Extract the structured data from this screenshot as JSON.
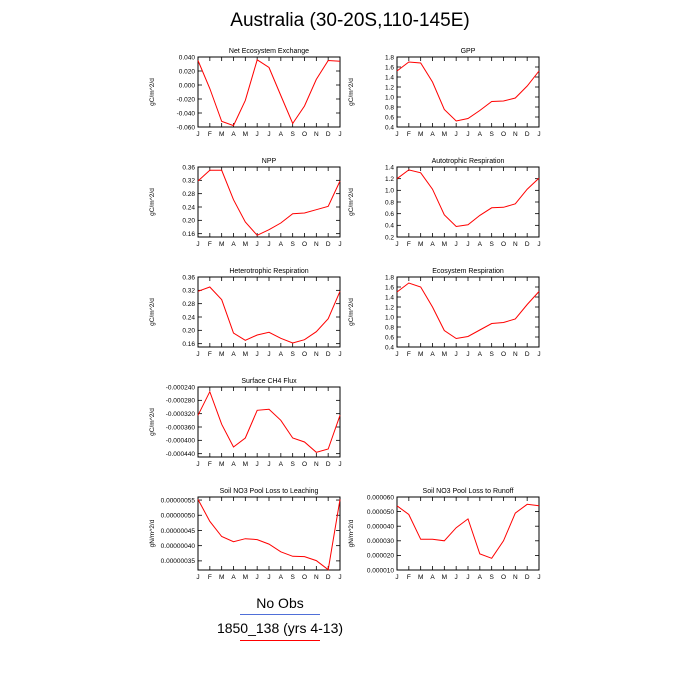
{
  "page_title": "Australia (30-20S,110-145E)",
  "legend": {
    "items": [
      {
        "label": "No Obs",
        "color": "#4f6fd8"
      },
      {
        "label": "1850_138 (yrs 4-13)",
        "color": "#ff0000"
      }
    ]
  },
  "line_color": "#ff0000",
  "months": [
    "J",
    "F",
    "M",
    "A",
    "M",
    "J",
    "J",
    "A",
    "S",
    "O",
    "N",
    "D",
    "J"
  ],
  "chart_data": [
    {
      "type": "line",
      "title": "Net Ecosystem Exchange",
      "ylabel": "gC/m^2/d",
      "ylim": [
        -0.06,
        0.04
      ],
      "yticks": [
        "0.040",
        "0.020",
        "0.000",
        "-0.020",
        "-0.040",
        "-0.060"
      ],
      "values": [
        0.035,
        -0.005,
        -0.052,
        -0.058,
        -0.022,
        0.036,
        0.025,
        -0.015,
        -0.055,
        -0.03,
        0.008,
        0.035,
        0.034
      ]
    },
    {
      "type": "line",
      "title": "GPP",
      "ylabel": "gC/m^2/d",
      "ylim": [
        0.4,
        1.8
      ],
      "yticks": [
        "1.8",
        "1.6",
        "1.4",
        "1.2",
        "1.0",
        "0.8",
        "0.6",
        "0.4"
      ],
      "values": [
        1.52,
        1.7,
        1.68,
        1.3,
        0.75,
        0.52,
        0.57,
        0.73,
        0.91,
        0.92,
        0.98,
        1.22,
        1.52
      ]
    },
    {
      "type": "line",
      "title": "NPP",
      "ylabel": "gC/m^2/d",
      "ylim": [
        0.15,
        0.36
      ],
      "yticks": [
        "0.36",
        "0.32",
        "0.28",
        "0.24",
        "0.20",
        "0.16"
      ],
      "values": [
        0.318,
        0.35,
        0.35,
        0.262,
        0.195,
        0.155,
        0.172,
        0.192,
        0.22,
        0.222,
        0.232,
        0.242,
        0.318
      ]
    },
    {
      "type": "line",
      "title": "Autotrophic Respiration",
      "ylabel": "gC/m^2/d",
      "ylim": [
        0.2,
        1.4
      ],
      "yticks": [
        "1.4",
        "1.2",
        "1.0",
        "0.8",
        "0.6",
        "0.4",
        "0.2"
      ],
      "values": [
        1.2,
        1.35,
        1.3,
        1.02,
        0.58,
        0.38,
        0.41,
        0.57,
        0.7,
        0.71,
        0.77,
        1.02,
        1.21
      ]
    },
    {
      "type": "line",
      "title": "Heterotrophic Respiration",
      "ylabel": "gC/m^2/d",
      "ylim": [
        0.15,
        0.36
      ],
      "yticks": [
        "0.36",
        "0.32",
        "0.28",
        "0.24",
        "0.20",
        "0.16"
      ],
      "values": [
        0.317,
        0.33,
        0.292,
        0.192,
        0.17,
        0.186,
        0.194,
        0.176,
        0.162,
        0.172,
        0.196,
        0.235,
        0.317
      ]
    },
    {
      "type": "line",
      "title": "Ecosystem Respiration",
      "ylabel": "gC/m^2/d",
      "ylim": [
        0.4,
        1.8
      ],
      "yticks": [
        "1.8",
        "1.6",
        "1.4",
        "1.2",
        "1.0",
        "0.8",
        "0.6",
        "0.4"
      ],
      "values": [
        1.5,
        1.68,
        1.6,
        1.2,
        0.73,
        0.57,
        0.61,
        0.74,
        0.87,
        0.89,
        0.96,
        1.25,
        1.51
      ]
    },
    {
      "type": "line",
      "title": "Surface CH4 Flux",
      "ylabel": "gC/m^2/d",
      "ylim": [
        -0.00045,
        -0.00024
      ],
      "yticks": [
        "-0.000240",
        "-0.000280",
        "-0.000320",
        "-0.000360",
        "-0.000400",
        "-0.000440"
      ],
      "values": [
        -0.000325,
        -0.000254,
        -0.000352,
        -0.00042,
        -0.000393,
        -0.00031,
        -0.000307,
        -0.00034,
        -0.000393,
        -0.000405,
        -0.000436,
        -0.000426,
        -0.000325
      ]
    },
    {
      "type": "line",
      "title": "Soil NO3 Pool Loss to Leaching",
      "ylabel": "gN/m^2/d",
      "ylim": [
        3.2e-07,
        5.6e-07
      ],
      "yticks": [
        "0.00000055",
        "0.00000050",
        "0.00000045",
        "0.00000040",
        "0.00000035"
      ],
      "ytick_values": [
        5.5e-07,
        5e-07,
        4.5e-07,
        4e-07,
        3.5e-07
      ],
      "values": [
        5.52e-07,
        4.8e-07,
        4.3e-07,
        4.13e-07,
        4.23e-07,
        4.2e-07,
        4.05e-07,
        3.8e-07,
        3.65e-07,
        3.64e-07,
        3.51e-07,
        3.21e-07,
        5.52e-07
      ]
    },
    {
      "type": "line",
      "title": "Soil NO3 Pool Loss to Runoff",
      "ylabel": "gN/m^2/d",
      "ylim": [
        1e-05,
        6e-05
      ],
      "yticks": [
        "0.000060",
        "0.000050",
        "0.000040",
        "0.000030",
        "0.000020",
        "0.000010"
      ],
      "values": [
        5.4e-05,
        4.8e-05,
        3.1e-05,
        3.1e-05,
        3e-05,
        3.9e-05,
        4.5e-05,
        2.1e-05,
        1.8e-05,
        3e-05,
        4.9e-05,
        5.5e-05,
        5.4e-05
      ]
    }
  ]
}
